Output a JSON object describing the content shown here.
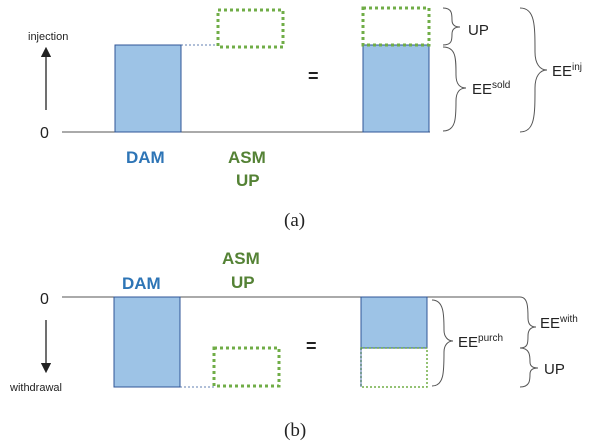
{
  "colors": {
    "bar_fill": "#9dc3e6",
    "bar_stroke": "#2f5597",
    "dam_text": "#2e75b6",
    "asm_text": "#548235",
    "dotted": "#70ad47",
    "axis": "#555555",
    "text": "#222222"
  },
  "panel_a": {
    "axis_label": "injection",
    "zero": "0",
    "dam_label": "DAM",
    "asm_label": "ASM",
    "up_label": "UP",
    "equals": "=",
    "brace_up": "UP",
    "brace_ee_base": "EE",
    "brace_ee_sup": "sold",
    "brace_total_base": "EE",
    "brace_total_sup": "inj",
    "caption": "(a)"
  },
  "panel_b": {
    "axis_label": "withdrawal",
    "zero": "0",
    "dam_label": "DAM",
    "asm_label": "ASM",
    "up_label": "UP",
    "equals": "=",
    "brace_ee_base": "EE",
    "brace_ee_sup": "with",
    "brace_total_base": "EE",
    "brace_total_sup": "purch",
    "brace_up": "UP",
    "caption": "(b)"
  }
}
